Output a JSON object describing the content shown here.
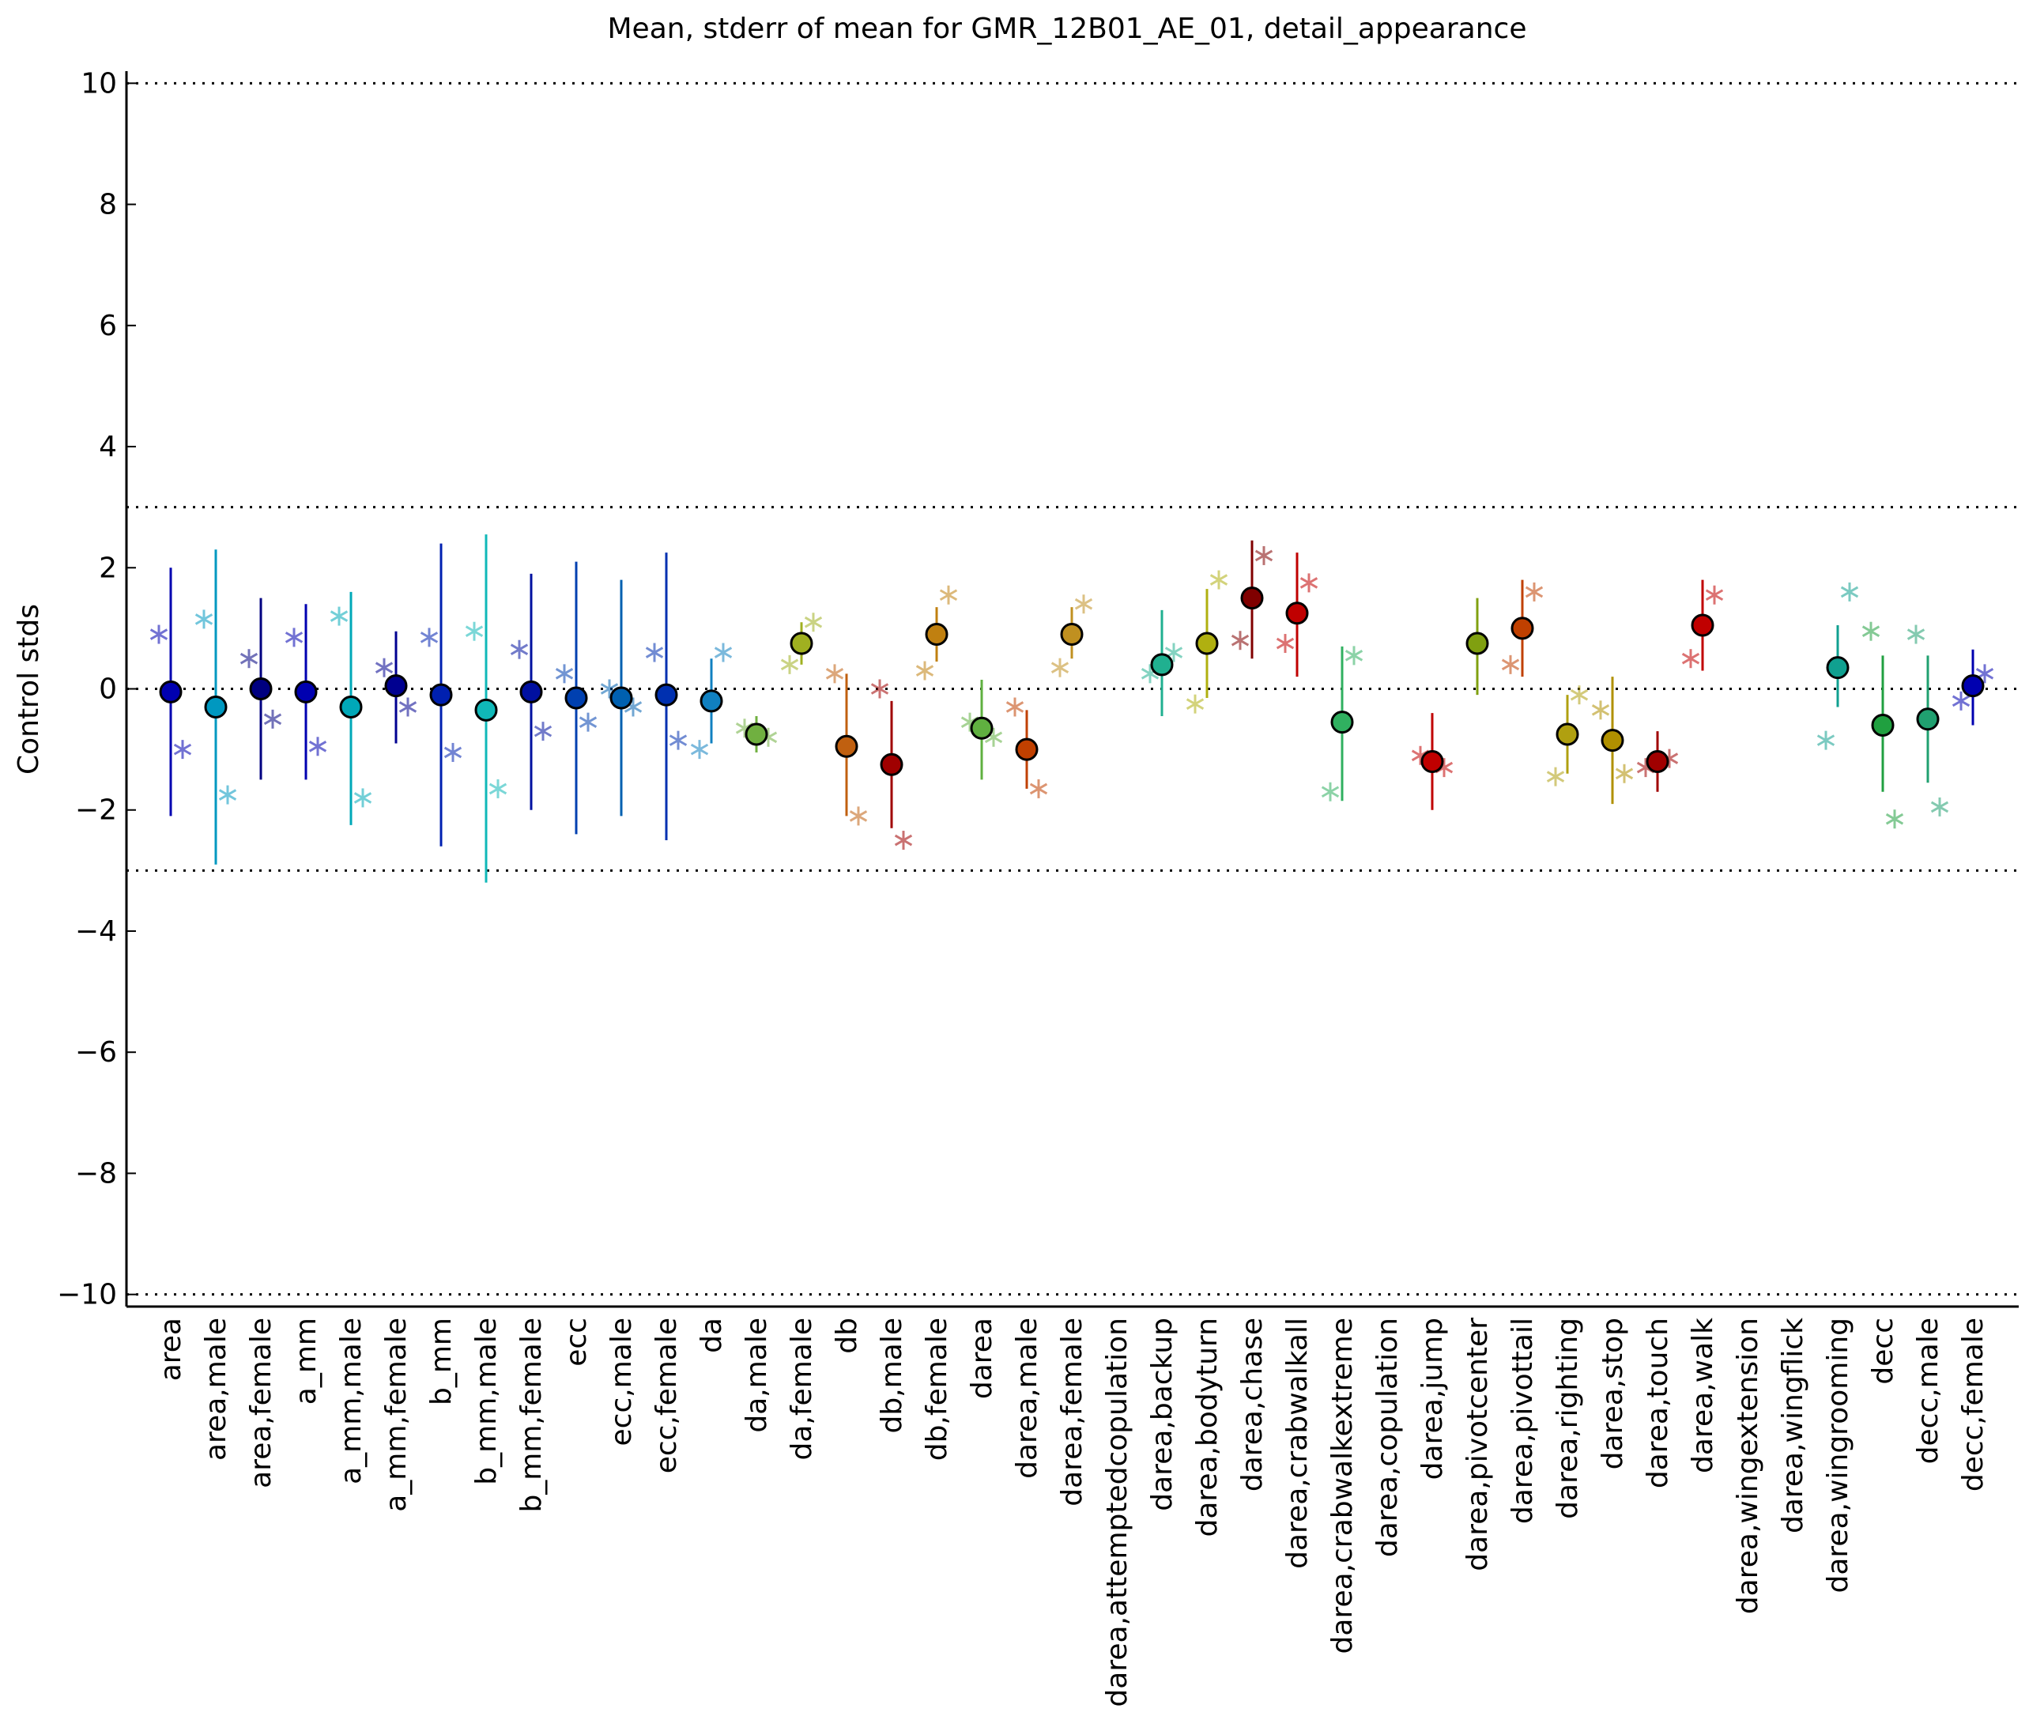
{
  "chart_data": {
    "type": "errorbar",
    "title": "Mean, stderr of mean for GMR_12B01_AE_01, detail_appearance",
    "y_label": "Control stds",
    "ylim": [
      -10.2,
      10.2
    ],
    "yticks": [
      {
        "value": -10,
        "label": "−10"
      },
      {
        "value": -8,
        "label": "−8"
      },
      {
        "value": -6,
        "label": "−6"
      },
      {
        "value": -4,
        "label": "−4"
      },
      {
        "value": -2,
        "label": "−2"
      },
      0,
      2,
      4,
      6,
      8,
      10
    ],
    "hlines": [
      10,
      3,
      0,
      -3,
      -10
    ],
    "categories": [
      "area",
      "area,male",
      "area,female",
      "a_mm",
      "a_mm,male",
      "a_mm,female",
      "b_mm",
      "b_mm,male",
      "b_mm,female",
      "ecc",
      "ecc,male",
      "ecc,female",
      "da",
      "da,male",
      "da,female",
      "db",
      "db,male",
      "db,female",
      "darea",
      "darea,male",
      "darea,female",
      "darea,attemptedcopulation",
      "darea,backup",
      "darea,bodyturn",
      "darea,chase",
      "darea,crabwalkall",
      "darea,crabwalkextreme",
      "darea,copulation",
      "darea,jump",
      "darea,pivotcenter",
      "darea,pivottail",
      "darea,righting",
      "darea,stop",
      "darea,touch",
      "darea,walk",
      "darea,wingextension",
      "darea,wingflick",
      "darea,wingrooming",
      "decc",
      "decc,male",
      "decc,female"
    ],
    "colors": [
      "#0000b0",
      "#0098c0",
      "#000080",
      "#0000b0",
      "#00a8b8",
      "#000090",
      "#0020b0",
      "#10b8b8",
      "#0010a0",
      "#0040b0",
      "#0060b0",
      "#0030b0",
      "#1080c0",
      "#70b040",
      "#a0b020",
      "#c06010",
      "#a00000",
      "#c08010",
      "#60b040",
      "#c04000",
      "#c09020",
      "#909090",
      "#20b090",
      "#b0b010",
      "#800000",
      "#c00000",
      "#30b060",
      "#909090",
      "#c00000",
      "#80a010",
      "#c04000",
      "#b0a010",
      "#b09000",
      "#a00000",
      "#c00000",
      "#909090",
      "#909090",
      "#10a090",
      "#20a040",
      "#20a070",
      "#0000b0"
    ],
    "means": [
      -0.05,
      -0.3,
      0.0,
      -0.05,
      -0.3,
      0.05,
      -0.1,
      -0.35,
      -0.05,
      -0.15,
      -0.15,
      -0.1,
      -0.2,
      -0.75,
      0.75,
      -0.95,
      -1.25,
      0.9,
      -0.65,
      -1.0,
      0.9,
      null,
      0.4,
      0.75,
      1.5,
      1.25,
      -0.55,
      null,
      -1.2,
      0.75,
      1.0,
      -0.75,
      -0.85,
      -1.2,
      1.05,
      null,
      null,
      0.35,
      -0.6,
      -0.5,
      0.05
    ],
    "lower": [
      -2.1,
      -2.9,
      -1.5,
      -1.5,
      -2.25,
      -0.9,
      -2.6,
      -3.2,
      -2.0,
      -2.4,
      -2.1,
      -2.5,
      -0.9,
      -1.05,
      0.4,
      -2.1,
      -2.3,
      0.45,
      -1.5,
      -1.65,
      0.5,
      null,
      -0.45,
      -0.15,
      0.5,
      0.2,
      -1.85,
      null,
      -2.0,
      -0.1,
      0.2,
      -1.4,
      -1.9,
      -1.7,
      0.3,
      null,
      null,
      -0.3,
      -1.7,
      -1.55,
      -0.6
    ],
    "upper": [
      2.0,
      2.3,
      1.5,
      1.4,
      1.6,
      0.95,
      2.4,
      2.55,
      1.9,
      2.1,
      1.8,
      2.25,
      0.5,
      -0.45,
      1.1,
      0.25,
      -0.2,
      1.35,
      0.15,
      -0.35,
      1.35,
      null,
      1.3,
      1.65,
      2.45,
      2.25,
      0.7,
      null,
      -0.4,
      1.5,
      1.8,
      -0.1,
      0.2,
      -0.7,
      1.8,
      null,
      null,
      1.05,
      0.55,
      0.55,
      0.65
    ],
    "left_points": [
      0.9,
      1.15,
      0.5,
      0.85,
      1.2,
      0.35,
      0.85,
      0.95,
      0.65,
      0.25,
      0.0,
      0.6,
      -1.0,
      -0.65,
      0.4,
      0.25,
      0.0,
      0.3,
      -0.55,
      -0.3,
      0.35,
      null,
      0.25,
      -0.25,
      0.8,
      0.75,
      -1.7,
      null,
      -1.1,
      null,
      0.4,
      -1.45,
      -0.35,
      -1.3,
      0.5,
      null,
      null,
      -0.85,
      0.95,
      0.9,
      -0.2
    ],
    "right_points": [
      -1.0,
      -1.75,
      -0.5,
      -0.95,
      -1.8,
      -0.3,
      -1.05,
      -1.65,
      -0.7,
      -0.55,
      -0.3,
      -0.85,
      0.6,
      -0.8,
      1.1,
      -2.1,
      -2.5,
      1.55,
      -0.8,
      -1.65,
      1.4,
      null,
      0.6,
      1.8,
      2.2,
      1.75,
      0.55,
      null,
      -1.3,
      null,
      1.6,
      -0.1,
      -1.4,
      -1.15,
      1.55,
      null,
      null,
      1.6,
      -2.15,
      -1.95,
      0.25
    ]
  }
}
